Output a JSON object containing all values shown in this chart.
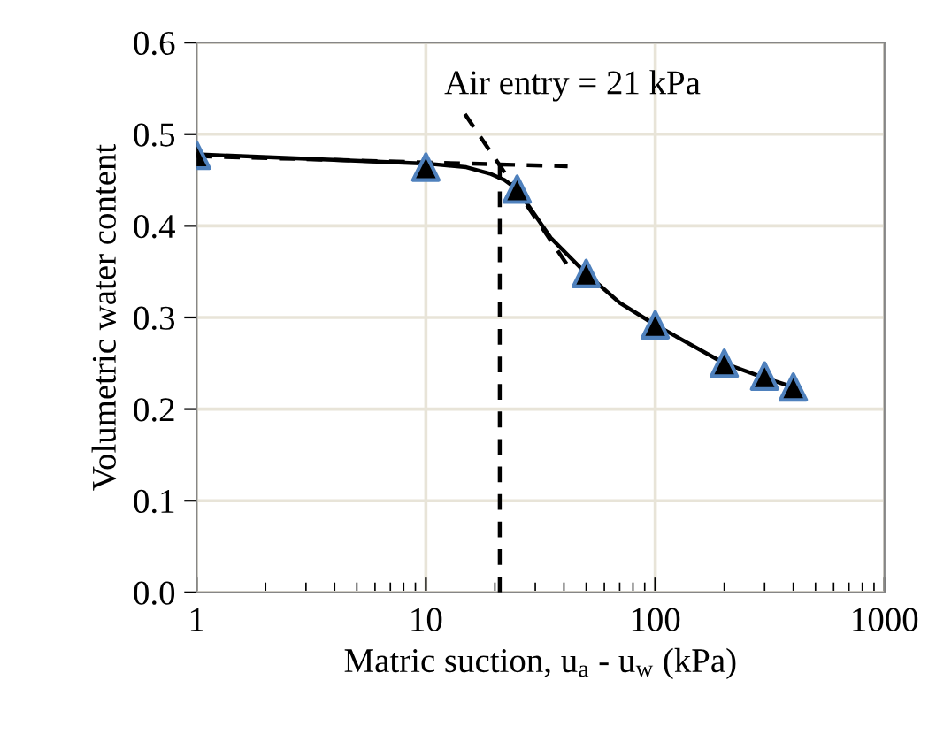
{
  "chart_data": {
    "type": "scatter",
    "xlabel": "Matric suction, u$_{a}$ - u$_{w}$ (kPa)",
    "ylabel": "Volumetric water content",
    "x": [
      1,
      10,
      25,
      50,
      100,
      200,
      300,
      400
    ],
    "series": [
      {
        "color": "#000000",
        "marker": "triangle",
        "values": [
          0.477,
          0.464,
          0.44,
          0.348,
          0.292,
          0.25,
          0.236,
          0.224
        ]
      },
      {
        "type": "line",
        "color": "#000000",
        "line_style": "solid",
        "x": [
          1,
          10,
          15,
          19,
          22,
          25,
          35,
          50,
          70,
          100,
          200,
          300,
          400
        ],
        "values": [
          0.478,
          0.468,
          0.464,
          0.457,
          0.45,
          0.44,
          0.387,
          0.348,
          0.316,
          0.292,
          0.25,
          0.234,
          0.224
        ]
      },
      {
        "type": "line",
        "color": "#000000",
        "line_style": "dashed",
        "x": [
          1,
          41.5
        ],
        "values": [
          0.476,
          0.465
        ]
      },
      {
        "type": "line",
        "color": "#000000",
        "line_style": "dashed",
        "x": [
          14.8,
          42
        ],
        "values": [
          0.522,
          0.355
        ]
      },
      {
        "type": "line",
        "color": "#000000",
        "line_style": "dashed",
        "x": [
          21,
          21
        ],
        "values": [
          0,
          0.47
        ]
      }
    ],
    "log": "x",
    "xlim": [
      1,
      1000
    ],
    "xticks": [
      1,
      10,
      100,
      1000
    ],
    "ylim": [
      0,
      0.6
    ],
    "yticks": [
      {
        "value": 0,
        "label": "0.0"
      },
      0.1,
      0.2,
      0.3,
      0.4,
      0.5,
      0.6
    ],
    "grid": true,
    "annotations": [
      "Air entry = 21 kPa"
    ]
  }
}
